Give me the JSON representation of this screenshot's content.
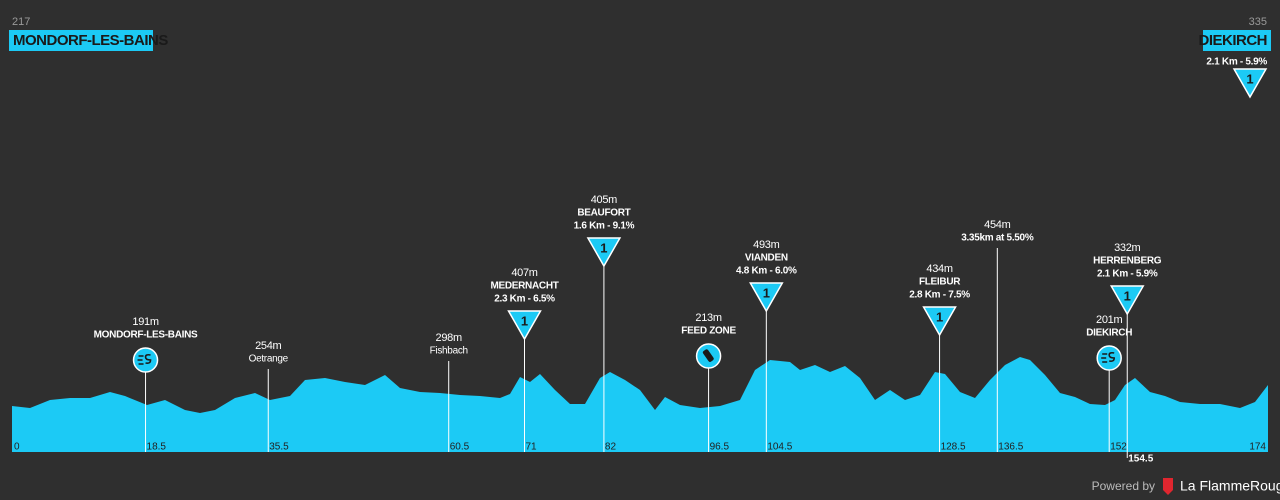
{
  "header": {
    "start": {
      "altitude": "217",
      "name": "MONDORF-LES-BAINS"
    },
    "finish": {
      "altitude": "335",
      "name": "DIEKIRCH",
      "detail": "2.1 Km - 5.9%",
      "category": "1"
    }
  },
  "profile": {
    "start_km": 0,
    "end_km": 174
  },
  "markers": [
    {
      "km": 18.5,
      "altitude": "191m",
      "name": "MONDORF-LES-BAINS"
    },
    {
      "km": 35.5,
      "altitude": "254m",
      "name": "Oetrange"
    },
    {
      "km": 60.5,
      "altitude": "298m",
      "name": "Fishbach"
    },
    {
      "km": 71,
      "altitude": "407m",
      "name": "MEDERNACHT",
      "detail": "2.3 Km - 6.5%",
      "category": "1"
    },
    {
      "km": 82,
      "altitude": "405m",
      "name": "BEAUFORT",
      "detail": "1.6 Km - 9.1%",
      "category": "1"
    },
    {
      "km": 96.5,
      "altitude": "213m",
      "name": "FEED ZONE"
    },
    {
      "km": 104.5,
      "altitude": "493m",
      "name": "VIANDEN",
      "detail": "4.8 Km - 6.0%",
      "category": "1"
    },
    {
      "km": 128.5,
      "altitude": "434m",
      "name": "FLEIBUR",
      "detail": "2.8 Km - 7.5%",
      "category": "1"
    },
    {
      "km": 136.5,
      "altitude": "454m",
      "detail": "3.35km at 5.50%"
    },
    {
      "km": 152,
      "altitude": "201m",
      "name": "DIEKIRCH"
    },
    {
      "km": 154.5,
      "altitude": "332m",
      "name": "HERRENBERG",
      "detail": "2.1 Km - 5.9%",
      "category": "1"
    }
  ],
  "footer": {
    "powered_by": "Powered by",
    "brand": "La FlammeRouge"
  }
}
